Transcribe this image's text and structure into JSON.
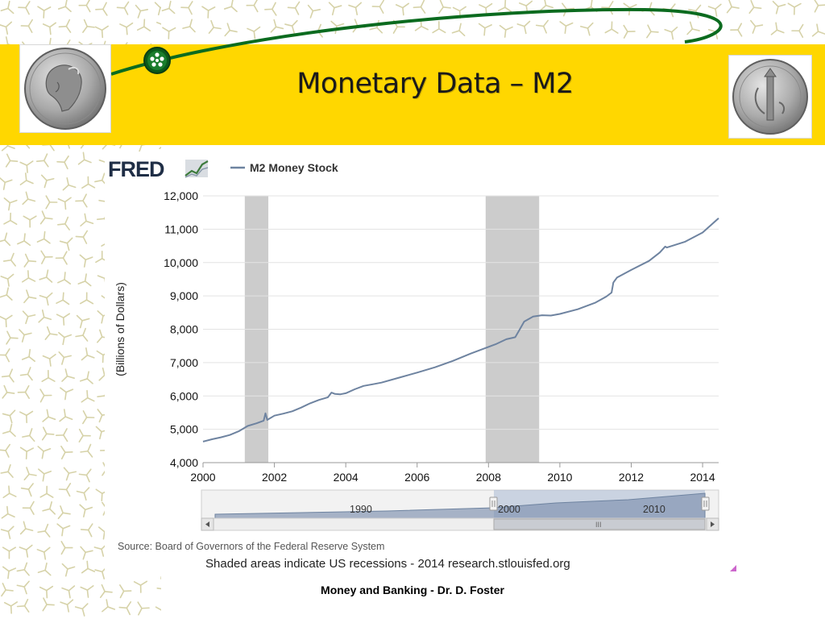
{
  "slide": {
    "title": "Monetary Data – M2",
    "footer": "Money and Banking - Dr. D. Foster"
  },
  "fred": {
    "logo_text": "FRED",
    "source_text": "Source: Board of Governors of the Federal Reserve System",
    "note_text": "Shaded areas indicate US recessions - 2014 research.stlouisfed.org",
    "navigator_labels": [
      "1990",
      "2000",
      "2010"
    ],
    "scroll_grip": "III"
  },
  "colors": {
    "banner": "#ffd700",
    "series_line": "#6e83a0",
    "recession_shade": "#cccccc",
    "orbit": "#0b6b1f"
  },
  "chart_data": {
    "type": "line",
    "xlabel": "",
    "ylabel": "(Billions of Dollars)",
    "xlim": [
      2000,
      2014.45
    ],
    "ylim": [
      4000,
      12000
    ],
    "x_ticks": [
      2000,
      2002,
      2004,
      2006,
      2008,
      2010,
      2012,
      2014
    ],
    "y_ticks": [
      4000,
      5000,
      6000,
      7000,
      8000,
      9000,
      10000,
      11000,
      12000
    ],
    "y_tick_labels": [
      "4,000",
      "5,000",
      "6,000",
      "7,000",
      "8,000",
      "9,000",
      "10,000",
      "11,000",
      "12,000"
    ],
    "grid": "horizontal",
    "legend_position": "top",
    "recessions": [
      [
        2001.17,
        2001.83
      ],
      [
        2007.92,
        2009.42
      ]
    ],
    "series": [
      {
        "name": "M2 Money Stock",
        "x": [
          2000.0,
          2000.25,
          2000.5,
          2000.75,
          2001.0,
          2001.25,
          2001.5,
          2001.7,
          2001.75,
          2001.8,
          2002.0,
          2002.25,
          2002.5,
          2002.75,
          2003.0,
          2003.25,
          2003.5,
          2003.6,
          2003.7,
          2003.85,
          2004.0,
          2004.25,
          2004.5,
          2004.75,
          2005.0,
          2005.5,
          2006.0,
          2006.5,
          2007.0,
          2007.5,
          2007.9,
          2008.2,
          2008.5,
          2008.75,
          2008.85,
          2009.0,
          2009.25,
          2009.5,
          2009.75,
          2010.0,
          2010.5,
          2011.0,
          2011.3,
          2011.45,
          2011.5,
          2011.6,
          2012.0,
          2012.5,
          2012.8,
          2012.95,
          2013.0,
          2013.5,
          2014.0,
          2014.45
        ],
        "y": [
          4630,
          4700,
          4760,
          4830,
          4940,
          5100,
          5180,
          5260,
          5480,
          5280,
          5410,
          5470,
          5540,
          5650,
          5780,
          5880,
          5960,
          6100,
          6060,
          6050,
          6080,
          6200,
          6300,
          6350,
          6400,
          6550,
          6700,
          6860,
          7050,
          7270,
          7430,
          7550,
          7700,
          7760,
          7950,
          8230,
          8380,
          8420,
          8410,
          8460,
          8600,
          8800,
          8980,
          9100,
          9400,
          9550,
          9780,
          10050,
          10300,
          10480,
          10450,
          10620,
          10900,
          11330
        ]
      }
    ]
  }
}
